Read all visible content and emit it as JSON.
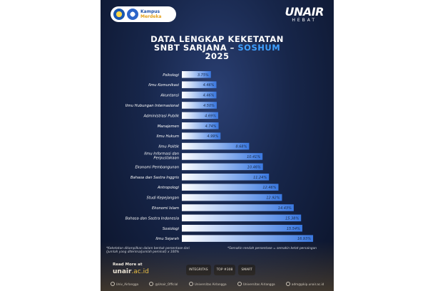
{
  "header": {
    "kampus_line1": "Kampus",
    "kampus_line2": "Merdeka",
    "brand_main": "UNAIR",
    "brand_sub": "HEBAT"
  },
  "title": {
    "line1": "DATA LENGKAP KEKETATAN",
    "line2_prefix": "SNBT SARJANA – ",
    "line2_accent": "SOSHUM",
    "line3": "2025"
  },
  "chart_data": {
    "type": "bar",
    "orientation": "horizontal",
    "categories": [
      "Psikologi",
      "Ilmu Komunikasi",
      "Akuntansi",
      "Ilmu Hubungan Internasional",
      "Administrasi Publik",
      "Manajemen",
      "Ilmu Hukum",
      "Ilmu Politik",
      "Ilmu Informasi dan Perpustakaan",
      "Ekonomi Pembangunan",
      "Bahasa dan Sastra Inggris",
      "Antropologi",
      "Studi Kepejangan",
      "Ekonomi Islam",
      "Bahasa dan Sastra Indonesia",
      "Sosiologi",
      "Ilmu Sejarah"
    ],
    "values": [
      3.75,
      4.46,
      4.46,
      4.5,
      4.69,
      4.74,
      4.99,
      8.68,
      10.41,
      10.46,
      11.24,
      12.46,
      12.92,
      14.43,
      15.38,
      15.54,
      16.93
    ],
    "value_labels": [
      "3.75%",
      "4.46%",
      "4.46%",
      "4.50%",
      "4.69%",
      "4.74%",
      "4.99%",
      "8.68%",
      "10.41%",
      "10.46%",
      "11.24%",
      "12.46%",
      "12.92%",
      "14.43%",
      "15.38%",
      "15.54%",
      "16.93%"
    ],
    "unit": "%",
    "colors": {
      "bar_light": "#ffffff",
      "bar_dark": "#3a78e0",
      "label_text": "#ffffff",
      "value_text": "#1a2b4a"
    }
  },
  "footnotes": {
    "left_line1": "*Keketatan ditampilkan dalam bentuk persentase dari",
    "left_line2": "(jumlah yang diterima/jumlah peminat) x 100%",
    "right": "*Semakin rendah persentase = semakin ketat persaingan"
  },
  "footer": {
    "read_more": "Read More at",
    "url_main": "unair",
    "url_suffix": ".ac.id",
    "badge1": "INTEGRITAS",
    "badge2": "TOP #308",
    "badge3": "SMART"
  },
  "social": [
    {
      "icon": "instagram-icon",
      "label": "Univ_Airlangga"
    },
    {
      "icon": "x-twitter-icon",
      "label": "@Unair_Official"
    },
    {
      "icon": "facebook-icon",
      "label": "Universitas Airlangga"
    },
    {
      "icon": "linkedin-icon",
      "label": "Universitas Airlangga"
    },
    {
      "icon": "mail-icon",
      "label": "adm@pkip.unair.ac.id"
    }
  ]
}
